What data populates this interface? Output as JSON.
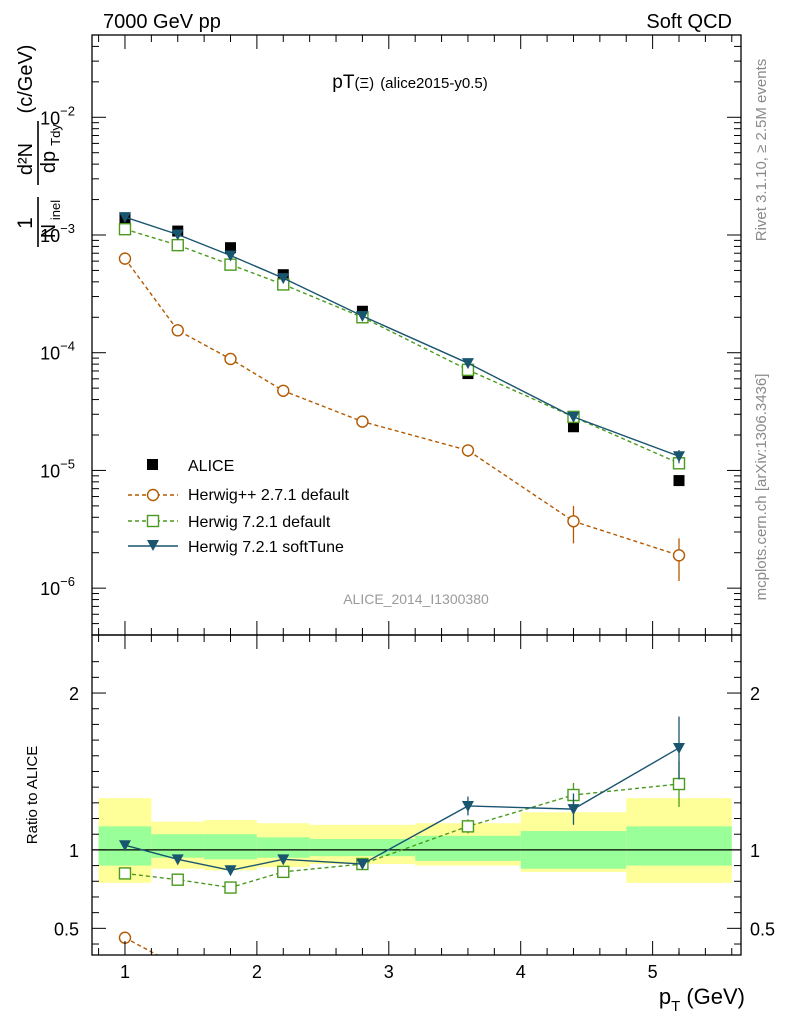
{
  "header": {
    "left": "7000 GeV pp",
    "right": "Soft QCD"
  },
  "title": {
    "main": "pT",
    "xi": "(Ξ)",
    "tag": "(alice2015-y0.5)"
  },
  "side": {
    "rivet": "Rivet 3.1.10, ≥ 2.5M events",
    "mcplots": "mcplots.cern.ch [arXiv:1306.3436]"
  },
  "watermark": "ALICE_2014_I1300380",
  "y_axis": {
    "unit": "(c/GeV)",
    "ratio_label": "Ratio to ALICE"
  },
  "x_axis": {
    "label": "p",
    "sub": "T",
    "unit": "(GeV)"
  },
  "colors": {
    "alice": "#000000",
    "herwigpp": "#b35900",
    "herwig721": "#4a9a1e",
    "softtune": "#1a5570",
    "band_inner": "#99ff99",
    "band_outer": "#ffff99"
  },
  "legend": [
    {
      "label": "ALICE",
      "marker": "square"
    },
    {
      "label": "Herwig++ 2.7.1 default",
      "marker": "open-circle"
    },
    {
      "label": "Herwig 7.2.1 default",
      "marker": "open-square"
    },
    {
      "label": "Herwig 7.2.1 softTune",
      "marker": "triangle-down"
    }
  ],
  "chart_data": {
    "type": "line",
    "x_scale": "linear",
    "y_scale_main": "log",
    "xlim": [
      0.75,
      5.67
    ],
    "ylim_main": [
      4e-07,
      0.05
    ],
    "ylim_ratio": [
      0.33,
      2.37
    ],
    "x_ticks": [
      1,
      2,
      3,
      4,
      5
    ],
    "main_y_ticks": [
      {
        "value": 0.01,
        "base": "10",
        "exp": "−2"
      },
      {
        "value": 0.001,
        "base": "10",
        "exp": "−3"
      },
      {
        "value": 0.0001,
        "base": "10",
        "exp": "−4"
      },
      {
        "value": 1e-05,
        "base": "10",
        "exp": "−5"
      },
      {
        "value": 1e-06,
        "base": "10",
        "exp": "−6"
      }
    ],
    "ratio_y_ticks": [
      {
        "value": 0.5,
        "label": "0.5"
      },
      {
        "value": 1,
        "label": "1"
      },
      {
        "value": 2,
        "label": "2"
      }
    ],
    "bin_edges": [
      0.8,
      1.2,
      1.6,
      2.0,
      2.4,
      3.2,
      4.0,
      4.8,
      5.6
    ],
    "x": [
      1.0,
      1.4,
      1.8,
      2.2,
      2.8,
      3.6,
      4.4,
      5.2
    ],
    "alice": [
      0.00138,
      0.00108,
      0.00078,
      0.00046,
      0.000225,
      6.65e-05,
      2.35e-05,
      8.2e-06
    ],
    "band_inner": [
      [
        0.9,
        1.15
      ],
      [
        0.95,
        1.1
      ],
      [
        0.94,
        1.1
      ],
      [
        0.95,
        1.08
      ],
      [
        0.96,
        1.07
      ],
      [
        0.93,
        1.09
      ],
      [
        0.88,
        1.12
      ],
      [
        0.9,
        1.15
      ]
    ],
    "band_outer": [
      [
        0.79,
        1.33
      ],
      [
        0.88,
        1.18
      ],
      [
        0.87,
        1.19
      ],
      [
        0.89,
        1.17
      ],
      [
        0.91,
        1.16
      ],
      [
        0.9,
        1.17
      ],
      [
        0.86,
        1.24
      ],
      [
        0.79,
        1.33
      ]
    ],
    "series": [
      {
        "name": "Herwig++ 2.7.1 default",
        "key": "herwigpp",
        "y": [
          0.00063,
          0.000155,
          8.85e-05,
          4.75e-05,
          2.6e-05,
          1.48e-05,
          3.7e-06,
          1.9e-06
        ],
        "err": [
          2e-05,
          6e-06,
          4e-06,
          5e-06,
          1.8e-06,
          1.8e-06,
          1.3e-06,
          7.5e-07
        ],
        "ratio": [
          0.44,
          0.26,
          0.26,
          0.26,
          0.26,
          0.26,
          0.26,
          0.26
        ]
      },
      {
        "name": "Herwig 7.2.1 default",
        "key": "herwig721",
        "y": [
          0.00112,
          0.00082,
          0.00056,
          0.00038,
          0.0002,
          7.15e-05,
          2.85e-05,
          1.15e-05
        ],
        "err": [
          3e-05,
          2e-05,
          1.2e-05,
          1e-05,
          6e-06,
          3e-06,
          1.8e-06,
          1.2e-06
        ],
        "ratio": [
          0.85,
          0.81,
          0.76,
          0.86,
          0.91,
          1.15,
          1.35,
          1.42
        ]
      },
      {
        "name": "Herwig 7.2.1 softTune",
        "key": "softtune",
        "y": [
          0.00142,
          0.00101,
          0.00067,
          0.00043,
          0.000205,
          8.15e-05,
          2.85e-05,
          1.32e-05
        ],
        "err": [
          4e-05,
          2e-05,
          1.5e-05,
          1e-05,
          6e-06,
          4e-06,
          2e-06,
          1.7e-06
        ],
        "ratio": [
          1.03,
          0.94,
          0.87,
          0.94,
          0.91,
          1.28,
          1.26,
          1.65
        ],
        "ratio_err": [
          0.02,
          0.02,
          0.02,
          0.02,
          0.02,
          0.06,
          0.1,
          0.2
        ]
      }
    ]
  }
}
